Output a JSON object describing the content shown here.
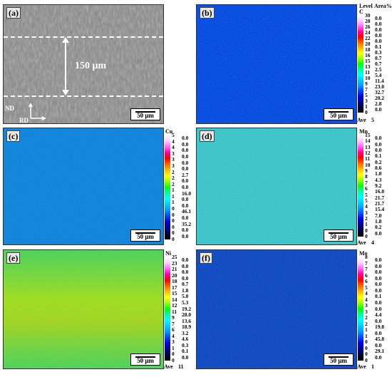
{
  "panels": {
    "a": {
      "label": "(a)",
      "thickness_label": "150 μm",
      "nd": "ND",
      "rd": "RD",
      "scale": "50 μm"
    },
    "b": {
      "label": "(b)",
      "element": "C",
      "header_level": "Level",
      "header_area": "Area%",
      "levels": [
        "30",
        "28",
        "26",
        "24",
        "22",
        "20",
        "18",
        "16",
        "15",
        "13",
        "11",
        "10",
        "9",
        "7",
        "5",
        "3",
        "1",
        "0"
      ],
      "areas": [
        "0.0",
        "0.0",
        "0.0",
        "0.0",
        "0.0",
        "0.1",
        "0.3",
        "0.7",
        "0.7",
        "2.5",
        "5.4",
        "11.4",
        "23.0",
        "32.7",
        "20.2",
        "2.8",
        "0.0"
      ],
      "ave_label": "Ave",
      "ave": "5",
      "scale": "50 μm"
    },
    "c": {
      "label": "(c)",
      "element": "Cu",
      "levels": [
        "5",
        "4",
        "4",
        "3",
        "3",
        "3",
        "2",
        "2",
        "2",
        "1",
        "1",
        "1",
        "0",
        "0",
        "0",
        "0",
        "0",
        "0"
      ],
      "areas": [
        "0.0",
        "0.0",
        "0.0",
        "0.0",
        "0.0",
        "0.0",
        "2.7",
        "0.0",
        "0.0",
        "16.0",
        "0.0",
        "0.0",
        "46.1",
        "0.0",
        "35.2",
        "0.0",
        "0.0"
      ],
      "scale": "50 μm"
    },
    "d": {
      "label": "(d)",
      "element": "Mn",
      "levels": [
        "15",
        "14",
        "13",
        "12",
        "11",
        "10",
        "9",
        "8",
        "7",
        "6",
        "5",
        "5",
        "4",
        "3",
        "2",
        "1",
        "0",
        "0"
      ],
      "areas": [
        "0.0",
        "0.0",
        "0.0",
        "0.1",
        "0.2",
        "0.6",
        "1.8",
        "4.3",
        "9.2",
        "16.0",
        "21.7",
        "21.7",
        "15.4",
        "7.0",
        "1.8",
        "0.2",
        "0.0"
      ],
      "ave_label": "Ave",
      "ave": "4",
      "scale": "50 μm"
    },
    "e": {
      "label": "(e)",
      "element": "Ni",
      "levels": [
        "25",
        "23",
        "21",
        "20",
        "18",
        "17",
        "15",
        "14",
        "12",
        "11",
        "9",
        "7",
        "6",
        "4",
        "3",
        "1",
        "0",
        "0"
      ],
      "areas": [
        "0.0",
        "0.0",
        "0.0",
        "0.0",
        "0.7",
        "1.8",
        "5.0",
        "5.3",
        "19.2",
        "28.0",
        "13.6",
        "18.9",
        "3.2",
        "4.6",
        "0.3",
        "0.1",
        "0.0"
      ],
      "ave_label": "Ave",
      "ave": "11",
      "scale": "50 μm"
    },
    "f": {
      "label": "(f)",
      "element": "Mo",
      "levels": [
        "8",
        "7",
        "7",
        "6",
        "6",
        "5",
        "4",
        "4",
        "3",
        "3",
        "2",
        "2",
        "1",
        "1",
        "0",
        "0",
        "0",
        "0"
      ],
      "areas": [
        "0.0",
        "0.0",
        "0.0",
        "0.0",
        "0.0",
        "0.0",
        "0.1",
        "0.0",
        "0.0",
        "4.4",
        "0.0",
        "19.8",
        "0.0",
        "45.8",
        "0.0",
        "29.1",
        "0.0"
      ],
      "ave_label": "Ave",
      "ave": "1",
      "scale": "50 μm"
    }
  },
  "colormap": [
    "#000000",
    "#000044",
    "#000099",
    "#0000dd",
    "#0044ff",
    "#0099ff",
    "#00ccff",
    "#00ffff",
    "#00ff99",
    "#00ff00",
    "#99ff00",
    "#ffff00",
    "#ffbb00",
    "#ff6600",
    "#ff0000",
    "#ff0099",
    "#ff66ff",
    "#ffccff",
    "#ffffff"
  ]
}
